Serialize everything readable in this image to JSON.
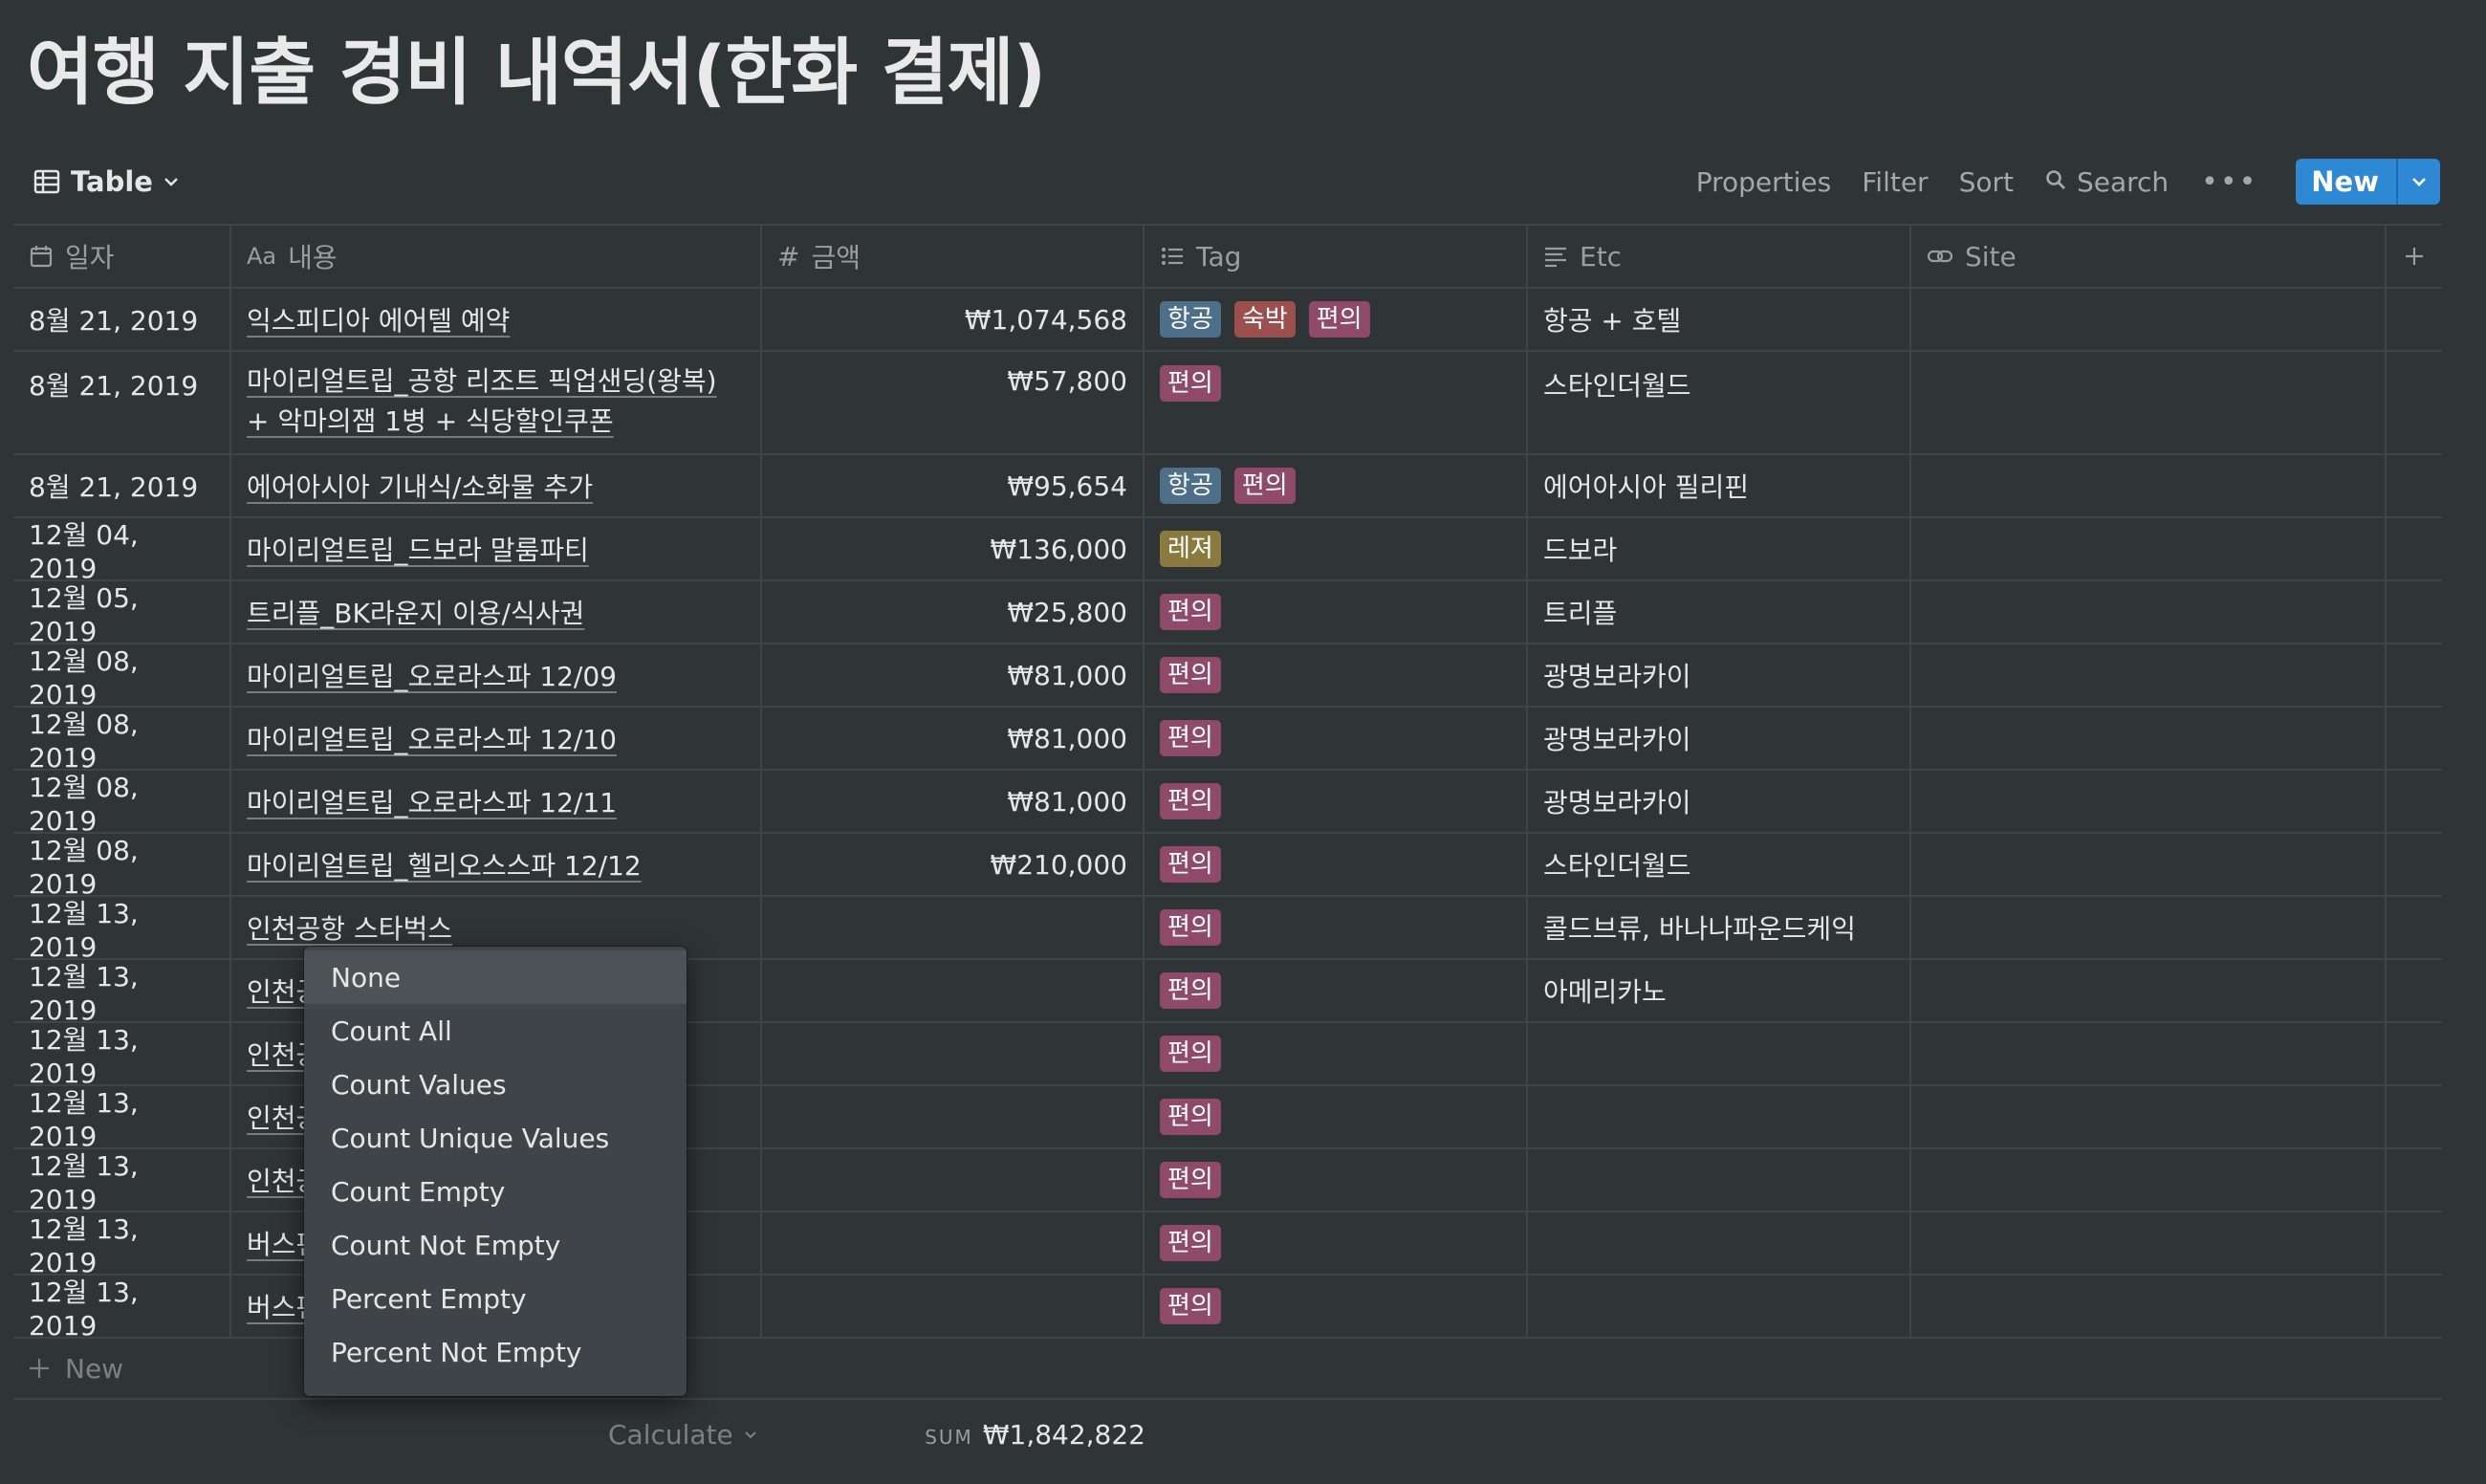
{
  "title": "여행 지출 경비 내역서(한화 결제)",
  "toolbar": {
    "view_label": "Table",
    "properties": "Properties",
    "filter": "Filter",
    "sort": "Sort",
    "search": "Search",
    "new": "New"
  },
  "columns": [
    {
      "label": "일자",
      "icon": "calendar-icon"
    },
    {
      "label": "내용",
      "icon": "text-aa-icon"
    },
    {
      "label": "금액",
      "icon": "hash-icon"
    },
    {
      "label": "Tag",
      "icon": "list-icon"
    },
    {
      "label": "Etc",
      "icon": "align-left-icon"
    },
    {
      "label": "Site",
      "icon": "link-icon"
    }
  ],
  "tag_colors": {
    "항공": "#4e6f89",
    "숙박": "#9c4f4f",
    "편의": "#8f4a6a",
    "레져": "#8a7a3e"
  },
  "rows": [
    {
      "date": "8월 21, 2019",
      "name": "익스피디아 에어텔 예약",
      "amount": "₩1,074,568",
      "tags": [
        "항공",
        "숙박",
        "편의"
      ],
      "etc": "항공 + 호텔",
      "site": ""
    },
    {
      "date": "8월 21, 2019",
      "name": "마이리얼트립_공항 리조트 픽업샌딩(왕복) + 악마의잼 1병 + 식당할인쿠폰",
      "amount": "₩57,800",
      "tags": [
        "편의"
      ],
      "etc": "스타인더월드",
      "site": ""
    },
    {
      "date": "8월 21, 2019",
      "name": "에어아시아 기내식/소화물 추가",
      "amount": "₩95,654",
      "tags": [
        "항공",
        "편의"
      ],
      "etc": "에어아시아 필리핀",
      "site": ""
    },
    {
      "date": "12월 04, 2019",
      "name": "마이리얼트립_드보라 말룸파티",
      "amount": "₩136,000",
      "tags": [
        "레져"
      ],
      "etc": "드보라",
      "site": ""
    },
    {
      "date": "12월 05, 2019",
      "name": "트리플_BK라운지 이용/식사권",
      "amount": "₩25,800",
      "tags": [
        "편의"
      ],
      "etc": "트리플",
      "site": ""
    },
    {
      "date": "12월 08, 2019",
      "name": "마이리얼트립_오로라스파 12/09",
      "amount": "₩81,000",
      "tags": [
        "편의"
      ],
      "etc": "광명보라카이",
      "site": ""
    },
    {
      "date": "12월 08, 2019",
      "name": "마이리얼트립_오로라스파 12/10",
      "amount": "₩81,000",
      "tags": [
        "편의"
      ],
      "etc": "광명보라카이",
      "site": ""
    },
    {
      "date": "12월 08, 2019",
      "name": "마이리얼트립_오로라스파 12/11",
      "amount": "₩81,000",
      "tags": [
        "편의"
      ],
      "etc": "광명보라카이",
      "site": ""
    },
    {
      "date": "12월 08, 2019",
      "name": "마이리얼트립_헬리오스스파 12/12",
      "amount": "₩210,000",
      "tags": [
        "편의"
      ],
      "etc": "스타인더월드",
      "site": ""
    },
    {
      "date": "12월 13, 2019",
      "name": "인천공항 스타벅스",
      "amount": "",
      "tags": [
        "편의"
      ],
      "etc": "콜드브류, 바나나파운드케익",
      "site": ""
    },
    {
      "date": "12월 13, 2019",
      "name": "인천공",
      "amount": "",
      "tags": [
        "편의"
      ],
      "etc": "아메리카노",
      "site": ""
    },
    {
      "date": "12월 13, 2019",
      "name": "인천공",
      "amount": "",
      "tags": [
        "편의"
      ],
      "etc": "",
      "site": ""
    },
    {
      "date": "12월 13, 2019",
      "name": "인천공",
      "amount": "",
      "tags": [
        "편의"
      ],
      "etc": "",
      "site": ""
    },
    {
      "date": "12월 13, 2019",
      "name": "인천공",
      "amount": "",
      "tags": [
        "편의"
      ],
      "etc": "",
      "site": ""
    },
    {
      "date": "12월 13, 2019",
      "name": "버스편",
      "amount": "",
      "tags": [
        "편의"
      ],
      "etc": "",
      "site": ""
    },
    {
      "date": "12월 13, 2019",
      "name": "버스편",
      "amount": "",
      "tags": [
        "편의"
      ],
      "etc": "",
      "site": ""
    }
  ],
  "new_row_label": "New",
  "footer": {
    "calculate": "Calculate",
    "sum_label": "SUM",
    "sum_value": "₩1,842,822"
  },
  "calc_menu": {
    "items": [
      "None",
      "Count All",
      "Count Values",
      "Count Unique Values",
      "Count Empty",
      "Count Not Empty",
      "Percent Empty",
      "Percent Not Empty"
    ],
    "selected": "None"
  }
}
